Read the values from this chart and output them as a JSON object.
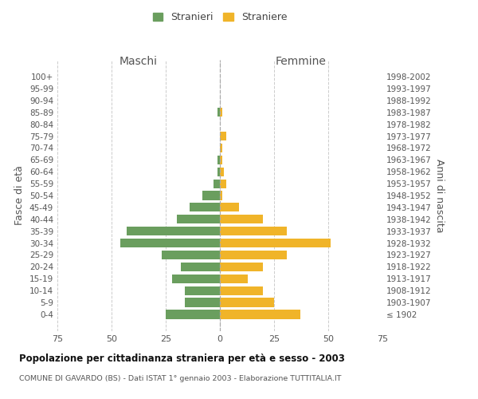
{
  "age_groups": [
    "100+",
    "95-99",
    "90-94",
    "85-89",
    "80-84",
    "75-79",
    "70-74",
    "65-69",
    "60-64",
    "55-59",
    "50-54",
    "45-49",
    "40-44",
    "35-39",
    "30-34",
    "25-29",
    "20-24",
    "15-19",
    "10-14",
    "5-9",
    "0-4"
  ],
  "birth_years": [
    "≤ 1902",
    "1903-1907",
    "1908-1912",
    "1913-1917",
    "1918-1922",
    "1923-1927",
    "1928-1932",
    "1933-1937",
    "1938-1942",
    "1943-1947",
    "1948-1952",
    "1953-1957",
    "1958-1962",
    "1963-1967",
    "1968-1972",
    "1973-1977",
    "1978-1982",
    "1983-1987",
    "1988-1992",
    "1993-1997",
    "1998-2002"
  ],
  "maschi": [
    0,
    0,
    0,
    1,
    0,
    0,
    0,
    1,
    1,
    3,
    8,
    14,
    20,
    43,
    46,
    27,
    18,
    22,
    16,
    16,
    25
  ],
  "femmine": [
    0,
    0,
    0,
    1,
    0,
    3,
    1,
    1,
    2,
    3,
    1,
    9,
    20,
    31,
    51,
    31,
    20,
    13,
    20,
    25,
    37
  ],
  "color_maschi": "#6a9e5e",
  "color_femmine": "#f0b429",
  "title_main": "Popolazione per cittadinanza straniera per età e sesso - 2003",
  "subtitle": "COMUNE DI GAVARDO (BS) - Dati ISTAT 1° gennaio 2003 - Elaborazione TUTTITALIA.IT",
  "legend_maschi": "Stranieri",
  "legend_femmine": "Straniere",
  "xlabel_left": "Maschi",
  "xlabel_right": "Femmine",
  "ylabel_left": "Fasce di età",
  "ylabel_right": "Anni di nascita",
  "xlim": 75,
  "bg_color": "#ffffff",
  "grid_color": "#cccccc"
}
